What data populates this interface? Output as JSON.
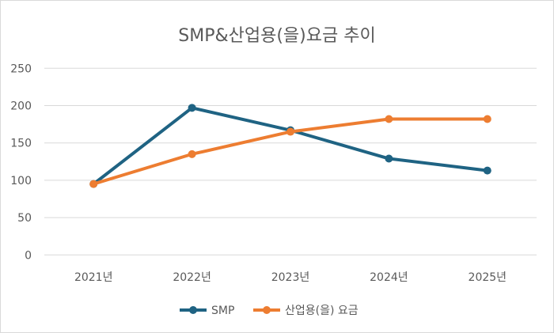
{
  "chart_data": {
    "type": "line",
    "title": "SMP&산업용(을)요금 추이",
    "xlabel": "",
    "ylabel": "",
    "categories": [
      "2021년",
      "2022년",
      "2023년",
      "2024년",
      "2025년"
    ],
    "ylim": [
      0,
      250
    ],
    "yticks": [
      0,
      50,
      100,
      150,
      200,
      250
    ],
    "ytick_labels": [
      "0",
      "50",
      "100",
      "150",
      "200",
      "250"
    ],
    "grid": true,
    "legend_position": "bottom",
    "series": [
      {
        "name": "SMP",
        "color": "#1f6383",
        "values": [
          95,
          197,
          167,
          129,
          113
        ]
      },
      {
        "name": "산업용(을) 요금",
        "color": "#ed7d31",
        "values": [
          95,
          135,
          165,
          182,
          182
        ]
      }
    ]
  }
}
